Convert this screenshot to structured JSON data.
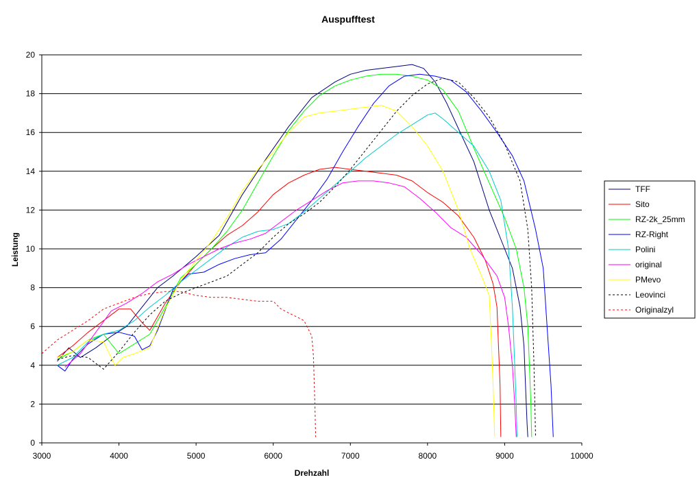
{
  "chart_data": {
    "type": "line",
    "title": "Auspufftest",
    "xlabel": "Drehzahl",
    "ylabel": "Leistung",
    "xlim": [
      3000,
      10000
    ],
    "ylim": [
      0,
      20
    ],
    "xticks": [
      3000,
      4000,
      5000,
      6000,
      7000,
      8000,
      9000,
      10000
    ],
    "yticks": [
      0,
      2,
      4,
      6,
      8,
      10,
      12,
      14,
      16,
      18,
      20
    ],
    "grid": "horizontal",
    "legend_position": "right",
    "series": [
      {
        "name": "TFF",
        "color": "#000080",
        "dash": "solid",
        "points": [
          [
            3200,
            4.2
          ],
          [
            3350,
            4.9
          ],
          [
            3500,
            4.4
          ],
          [
            3700,
            4.9
          ],
          [
            3900,
            5.5
          ],
          [
            4100,
            6.0
          ],
          [
            4300,
            7.0
          ],
          [
            4500,
            8.0
          ],
          [
            4700,
            8.6
          ],
          [
            5000,
            9.6
          ],
          [
            5300,
            10.7
          ],
          [
            5600,
            12.8
          ],
          [
            5900,
            14.6
          ],
          [
            6200,
            16.3
          ],
          [
            6500,
            17.8
          ],
          [
            6800,
            18.6
          ],
          [
            7000,
            19.0
          ],
          [
            7200,
            19.2
          ],
          [
            7400,
            19.3
          ],
          [
            7600,
            19.4
          ],
          [
            7800,
            19.5
          ],
          [
            7950,
            19.3
          ],
          [
            8100,
            18.6
          ],
          [
            8250,
            17.5
          ],
          [
            8400,
            16.2
          ],
          [
            8600,
            14.5
          ],
          [
            8800,
            12.0
          ],
          [
            9000,
            10.0
          ],
          [
            9100,
            9.0
          ],
          [
            9200,
            7.0
          ],
          [
            9250,
            5.0
          ],
          [
            9270,
            3.0
          ],
          [
            9290,
            1.0
          ],
          [
            9300,
            0.3
          ]
        ]
      },
      {
        "name": "Sito",
        "color": "#ff0000",
        "dash": "solid",
        "points": [
          [
            3200,
            4.4
          ],
          [
            3400,
            5.0
          ],
          [
            3600,
            5.7
          ],
          [
            3800,
            6.3
          ],
          [
            4000,
            6.9
          ],
          [
            4150,
            6.9
          ],
          [
            4300,
            6.2
          ],
          [
            4400,
            5.8
          ],
          [
            4600,
            7.2
          ],
          [
            4800,
            8.3
          ],
          [
            5000,
            9.2
          ],
          [
            5200,
            10.0
          ],
          [
            5400,
            10.7
          ],
          [
            5600,
            11.2
          ],
          [
            5800,
            11.9
          ],
          [
            6000,
            12.8
          ],
          [
            6200,
            13.4
          ],
          [
            6400,
            13.8
          ],
          [
            6600,
            14.1
          ],
          [
            6800,
            14.2
          ],
          [
            7000,
            14.1
          ],
          [
            7200,
            14.0
          ],
          [
            7400,
            13.9
          ],
          [
            7600,
            13.8
          ],
          [
            7800,
            13.5
          ],
          [
            8000,
            12.9
          ],
          [
            8200,
            12.4
          ],
          [
            8400,
            11.7
          ],
          [
            8600,
            10.6
          ],
          [
            8750,
            9.4
          ],
          [
            8850,
            8.2
          ],
          [
            8900,
            7.0
          ],
          [
            8920,
            5.0
          ],
          [
            8940,
            3.0
          ],
          [
            8950,
            0.3
          ]
        ]
      },
      {
        "name": "RZ-2k_25mm",
        "color": "#00ff00",
        "dash": "solid",
        "points": [
          [
            3200,
            4.3
          ],
          [
            3400,
            4.7
          ],
          [
            3600,
            5.3
          ],
          [
            3800,
            5.6
          ],
          [
            4000,
            4.6
          ],
          [
            4200,
            5.1
          ],
          [
            4400,
            5.6
          ],
          [
            4600,
            7.0
          ],
          [
            4800,
            8.5
          ],
          [
            5000,
            9.2
          ],
          [
            5200,
            10.0
          ],
          [
            5400,
            10.9
          ],
          [
            5600,
            12.0
          ],
          [
            5800,
            13.4
          ],
          [
            6000,
            14.8
          ],
          [
            6200,
            16.1
          ],
          [
            6400,
            17.1
          ],
          [
            6600,
            17.9
          ],
          [
            6800,
            18.4
          ],
          [
            7000,
            18.7
          ],
          [
            7200,
            18.9
          ],
          [
            7400,
            19.0
          ],
          [
            7600,
            19.0
          ],
          [
            7800,
            18.9
          ],
          [
            8000,
            18.7
          ],
          [
            8200,
            18.2
          ],
          [
            8400,
            17.1
          ],
          [
            8600,
            15.2
          ],
          [
            8800,
            13.4
          ],
          [
            9000,
            11.6
          ],
          [
            9150,
            10.0
          ],
          [
            9250,
            8.0
          ],
          [
            9300,
            6.0
          ],
          [
            9320,
            4.0
          ],
          [
            9340,
            2.0
          ],
          [
            9350,
            0.3
          ]
        ]
      },
      {
        "name": "RZ-Right",
        "color": "#0000ff",
        "dash": "solid",
        "points": [
          [
            3200,
            4.0
          ],
          [
            3300,
            3.7
          ],
          [
            3400,
            4.3
          ],
          [
            3600,
            5.1
          ],
          [
            3800,
            5.6
          ],
          [
            4000,
            5.7
          ],
          [
            4200,
            5.5
          ],
          [
            4300,
            4.8
          ],
          [
            4400,
            5.0
          ],
          [
            4500,
            5.8
          ],
          [
            4700,
            7.9
          ],
          [
            4900,
            8.7
          ],
          [
            5100,
            8.8
          ],
          [
            5300,
            9.2
          ],
          [
            5500,
            9.5
          ],
          [
            5700,
            9.7
          ],
          [
            5900,
            9.8
          ],
          [
            6100,
            10.5
          ],
          [
            6300,
            11.5
          ],
          [
            6500,
            12.5
          ],
          [
            6700,
            13.6
          ],
          [
            6900,
            15.0
          ],
          [
            7100,
            16.3
          ],
          [
            7300,
            17.5
          ],
          [
            7500,
            18.4
          ],
          [
            7700,
            18.9
          ],
          [
            7900,
            19.0
          ],
          [
            8100,
            18.9
          ],
          [
            8300,
            18.7
          ],
          [
            8500,
            18.1
          ],
          [
            8700,
            17.1
          ],
          [
            8900,
            16.0
          ],
          [
            9100,
            14.8
          ],
          [
            9250,
            13.5
          ],
          [
            9400,
            11.0
          ],
          [
            9500,
            9.0
          ],
          [
            9550,
            6.0
          ],
          [
            9600,
            3.0
          ],
          [
            9630,
            0.3
          ]
        ]
      },
      {
        "name": "Polini",
        "color": "#00cccc",
        "dash": "solid",
        "points": [
          [
            3200,
            4.0
          ],
          [
            3400,
            4.4
          ],
          [
            3600,
            5.2
          ],
          [
            3800,
            5.6
          ],
          [
            4000,
            5.8
          ],
          [
            4200,
            6.3
          ],
          [
            4400,
            7.0
          ],
          [
            4600,
            7.6
          ],
          [
            4800,
            8.3
          ],
          [
            5000,
            8.9
          ],
          [
            5200,
            9.5
          ],
          [
            5400,
            10.1
          ],
          [
            5600,
            10.6
          ],
          [
            5800,
            10.9
          ],
          [
            6000,
            11.0
          ],
          [
            6200,
            11.3
          ],
          [
            6400,
            11.9
          ],
          [
            6600,
            12.6
          ],
          [
            6800,
            13.3
          ],
          [
            7000,
            14.0
          ],
          [
            7200,
            14.7
          ],
          [
            7400,
            15.3
          ],
          [
            7600,
            15.9
          ],
          [
            7800,
            16.4
          ],
          [
            8000,
            16.9
          ],
          [
            8100,
            17.0
          ],
          [
            8200,
            16.7
          ],
          [
            8400,
            16.0
          ],
          [
            8600,
            15.3
          ],
          [
            8800,
            14.0
          ],
          [
            8950,
            12.5
          ],
          [
            9050,
            10.0
          ],
          [
            9100,
            7.0
          ],
          [
            9130,
            4.0
          ],
          [
            9150,
            2.0
          ],
          [
            9160,
            0.3
          ]
        ]
      },
      {
        "name": "original",
        "color": "#ff00ff",
        "dash": "solid",
        "points": [
          [
            3300,
            3.9
          ],
          [
            3500,
            4.6
          ],
          [
            3700,
            5.7
          ],
          [
            3900,
            6.8
          ],
          [
            4100,
            7.2
          ],
          [
            4300,
            7.7
          ],
          [
            4500,
            8.3
          ],
          [
            4700,
            8.7
          ],
          [
            4900,
            9.2
          ],
          [
            5100,
            9.6
          ],
          [
            5300,
            10.0
          ],
          [
            5500,
            10.3
          ],
          [
            5700,
            10.5
          ],
          [
            5900,
            10.8
          ],
          [
            6100,
            11.4
          ],
          [
            6300,
            12.0
          ],
          [
            6500,
            12.5
          ],
          [
            6700,
            13.0
          ],
          [
            6900,
            13.4
          ],
          [
            7100,
            13.5
          ],
          [
            7300,
            13.5
          ],
          [
            7500,
            13.4
          ],
          [
            7700,
            13.2
          ],
          [
            7900,
            12.6
          ],
          [
            8100,
            11.9
          ],
          [
            8300,
            11.1
          ],
          [
            8500,
            10.6
          ],
          [
            8700,
            9.7
          ],
          [
            8900,
            8.6
          ],
          [
            9000,
            7.5
          ],
          [
            9050,
            6.0
          ],
          [
            9100,
            4.0
          ],
          [
            9130,
            2.0
          ],
          [
            9150,
            0.3
          ]
        ]
      },
      {
        "name": "PMevo",
        "color": "#ffff00",
        "dash": "solid",
        "points": [
          [
            3200,
            4.4
          ],
          [
            3400,
            4.7
          ],
          [
            3600,
            5.3
          ],
          [
            3800,
            5.2
          ],
          [
            3950,
            4.0
          ],
          [
            4050,
            4.4
          ],
          [
            4200,
            4.6
          ],
          [
            4400,
            4.9
          ],
          [
            4600,
            6.9
          ],
          [
            4800,
            8.4
          ],
          [
            5000,
            9.4
          ],
          [
            5200,
            10.4
          ],
          [
            5400,
            11.6
          ],
          [
            5600,
            13.0
          ],
          [
            5800,
            14.1
          ],
          [
            6000,
            15.0
          ],
          [
            6200,
            16.0
          ],
          [
            6400,
            16.8
          ],
          [
            6600,
            17.0
          ],
          [
            6800,
            17.1
          ],
          [
            7000,
            17.2
          ],
          [
            7200,
            17.3
          ],
          [
            7400,
            17.4
          ],
          [
            7600,
            17.1
          ],
          [
            7800,
            16.3
          ],
          [
            8000,
            15.3
          ],
          [
            8200,
            14.0
          ],
          [
            8400,
            12.0
          ],
          [
            8550,
            10.0
          ],
          [
            8700,
            8.6
          ],
          [
            8800,
            7.6
          ],
          [
            8830,
            5.0
          ],
          [
            8850,
            3.0
          ],
          [
            8870,
            0.3
          ]
        ]
      },
      {
        "name": "Leovinci",
        "color": "#000000",
        "dash": "dashed",
        "points": [
          [
            3200,
            4.3
          ],
          [
            3400,
            4.5
          ],
          [
            3600,
            4.4
          ],
          [
            3800,
            3.8
          ],
          [
            4000,
            4.7
          ],
          [
            4200,
            5.7
          ],
          [
            4400,
            6.6
          ],
          [
            4600,
            7.3
          ],
          [
            4800,
            7.7
          ],
          [
            5000,
            8.0
          ],
          [
            5200,
            8.3
          ],
          [
            5400,
            8.6
          ],
          [
            5600,
            9.2
          ],
          [
            5800,
            9.8
          ],
          [
            6000,
            10.6
          ],
          [
            6200,
            11.3
          ],
          [
            6400,
            11.8
          ],
          [
            6600,
            12.4
          ],
          [
            6800,
            13.2
          ],
          [
            7000,
            14.1
          ],
          [
            7200,
            15.1
          ],
          [
            7400,
            16.1
          ],
          [
            7600,
            17.1
          ],
          [
            7800,
            17.9
          ],
          [
            8000,
            18.5
          ],
          [
            8200,
            18.8
          ],
          [
            8400,
            18.6
          ],
          [
            8600,
            17.8
          ],
          [
            8800,
            16.8
          ],
          [
            9000,
            15.4
          ],
          [
            9200,
            13.5
          ],
          [
            9300,
            11.0
          ],
          [
            9350,
            8.0
          ],
          [
            9380,
            4.0
          ],
          [
            9400,
            0.3
          ]
        ]
      },
      {
        "name": "Originalzyl",
        "color": "#ff0000",
        "dash": "dashed",
        "points": [
          [
            3000,
            4.6
          ],
          [
            3200,
            5.3
          ],
          [
            3400,
            5.8
          ],
          [
            3600,
            6.3
          ],
          [
            3800,
            6.9
          ],
          [
            4000,
            7.2
          ],
          [
            4200,
            7.5
          ],
          [
            4400,
            7.7
          ],
          [
            4600,
            7.8
          ],
          [
            4800,
            7.8
          ],
          [
            5000,
            7.6
          ],
          [
            5200,
            7.5
          ],
          [
            5400,
            7.5
          ],
          [
            5600,
            7.4
          ],
          [
            5800,
            7.3
          ],
          [
            6000,
            7.3
          ],
          [
            6100,
            6.9
          ],
          [
            6200,
            6.7
          ],
          [
            6300,
            6.5
          ],
          [
            6400,
            6.3
          ],
          [
            6500,
            5.5
          ],
          [
            6520,
            4.5
          ],
          [
            6540,
            2.0
          ],
          [
            6550,
            0.3
          ]
        ]
      }
    ]
  }
}
